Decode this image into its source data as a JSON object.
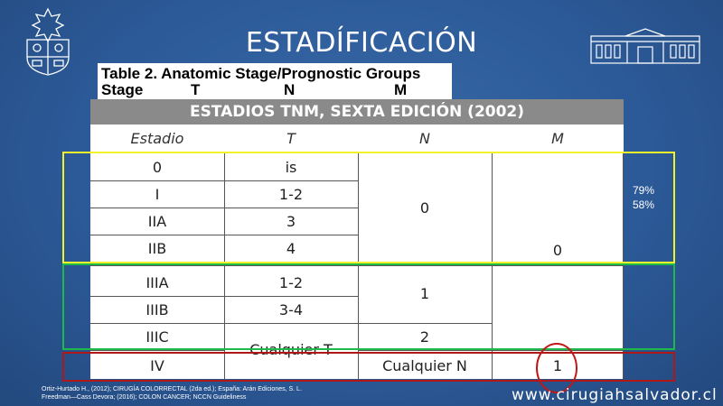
{
  "slide": {
    "title": "ESTADÍFICACIÓN",
    "website": "www.cirugiahsalvador.cl"
  },
  "bg_table": {
    "title": "Table 2. Anatomic Stage/Prognostic Groups",
    "headers": [
      "Stage",
      "T",
      "N",
      "M"
    ]
  },
  "table": {
    "heading": "ESTADIOS TNM, SEXTA EDICIÓN (2002)",
    "columns": [
      "Estadio",
      "T",
      "N",
      "M"
    ],
    "rows": [
      {
        "estadio": "0",
        "t": "is"
      },
      {
        "estadio": "I",
        "t": "1-2"
      },
      {
        "estadio": "IIA",
        "t": "3"
      },
      {
        "estadio": "IIB",
        "t": "4"
      },
      {
        "estadio": "IIIA",
        "t": "1-2"
      },
      {
        "estadio": "IIIB",
        "t": "3-4"
      },
      {
        "estadio": "IIIC",
        "t": ""
      },
      {
        "estadio": "IV",
        "t": ""
      }
    ],
    "merged": {
      "t_any": "Cualquier T",
      "n_group1": "0",
      "n_group2": "1",
      "n_group3": "2",
      "n_any": "Cualquier N",
      "m_group1": "0",
      "m_group2": "1"
    }
  },
  "annotations": {
    "pct1": "79%",
    "pct2": "58%"
  },
  "citation": {
    "line1": "Ortiz-Hurtado H., (2012); CIRUGÍA COLORRECTAL (2da ed.); España: Arán Ediciones, S. L.",
    "line2": "Freedman—Cass Devora; (2016); COLON CANCER; NCCN Guideliness"
  },
  "colors": {
    "background": "#2c5a98",
    "yellow_box": "#f2f22a",
    "green_box": "#1fb84a",
    "red_box": "#b01818",
    "circle": "#c01818"
  }
}
